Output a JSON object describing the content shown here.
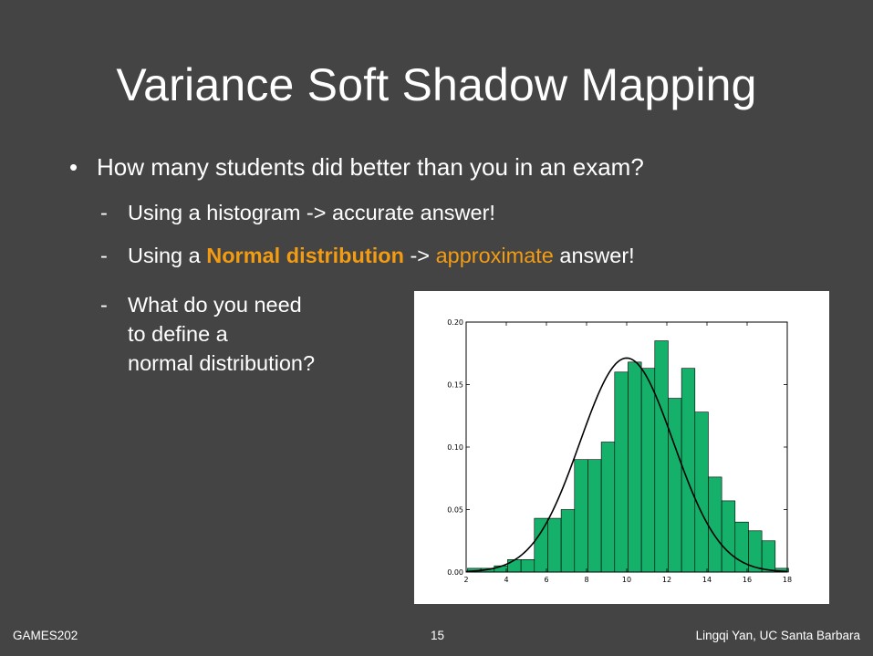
{
  "slide": {
    "title": "Variance Soft Shadow Mapping",
    "bullet": "How many students did better than you in an exam?",
    "sub1": "Using a histogram -> accurate answer!",
    "sub2_prefix": "Using a ",
    "sub2_highlight": "Normal distribution",
    "sub2_middle": " -> ",
    "sub2_orange": "approximate",
    "sub2_suffix": " answer!",
    "sub3_lines": [
      "What do you need",
      "to define a",
      "normal distribution?"
    ],
    "bullet_symbol": "•",
    "dash_symbol": "-"
  },
  "footer": {
    "left": "GAMES202",
    "page": "15",
    "right": "Lingqi Yan, UC Santa Barbara"
  },
  "colors": {
    "background": "#444444",
    "accent": "#f39c12",
    "bar_fill": "#15b06a",
    "curve": "#000000"
  },
  "chart_data": {
    "type": "bar",
    "xlim": [
      2,
      18
    ],
    "ylim": [
      0,
      0.2
    ],
    "xticks": [
      2,
      4,
      6,
      8,
      10,
      12,
      14,
      16,
      18
    ],
    "yticks": [
      0.0,
      0.05,
      0.1,
      0.15,
      0.2
    ],
    "ytick_labels": [
      "0.00",
      "0.05",
      "0.10",
      "0.15",
      "0.20"
    ],
    "bin_width": 0.667,
    "bins": [
      {
        "x": 2.4,
        "y": 0.003
      },
      {
        "x": 3.067,
        "y": 0.003
      },
      {
        "x": 3.733,
        "y": 0.005
      },
      {
        "x": 4.4,
        "y": 0.01
      },
      {
        "x": 5.067,
        "y": 0.01
      },
      {
        "x": 5.733,
        "y": 0.043
      },
      {
        "x": 6.4,
        "y": 0.043
      },
      {
        "x": 7.067,
        "y": 0.05
      },
      {
        "x": 7.733,
        "y": 0.09
      },
      {
        "x": 8.4,
        "y": 0.09
      },
      {
        "x": 9.067,
        "y": 0.104
      },
      {
        "x": 9.733,
        "y": 0.16
      },
      {
        "x": 10.4,
        "y": 0.168
      },
      {
        "x": 11.067,
        "y": 0.163
      },
      {
        "x": 11.733,
        "y": 0.185
      },
      {
        "x": 12.4,
        "y": 0.139
      },
      {
        "x": 13.067,
        "y": 0.163
      },
      {
        "x": 13.733,
        "y": 0.128
      },
      {
        "x": 14.4,
        "y": 0.076
      },
      {
        "x": 15.067,
        "y": 0.057
      },
      {
        "x": 15.733,
        "y": 0.04
      },
      {
        "x": 16.4,
        "y": 0.033
      },
      {
        "x": 17.067,
        "y": 0.025
      },
      {
        "x": 17.733,
        "y": 0.003
      }
    ],
    "curve": {
      "type": "normal",
      "mean": 10,
      "sd": 2.33
    }
  }
}
